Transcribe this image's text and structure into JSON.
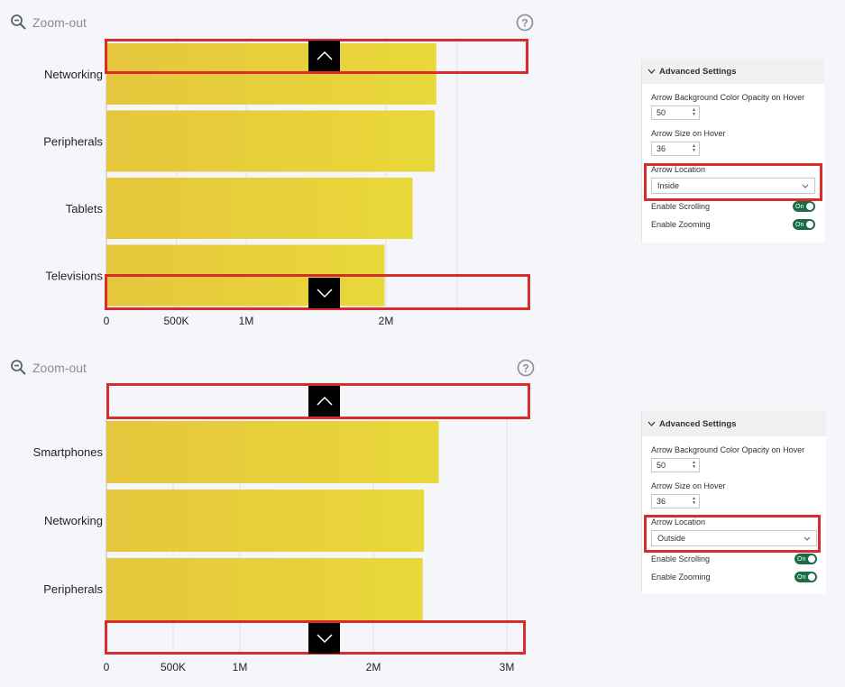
{
  "top": {
    "zoom_label": "Zoom-out",
    "panel": {
      "header": "Advanced Settings",
      "opacity_label": "Arrow Background Color Opacity on Hover",
      "opacity_value": "50",
      "size_label": "Arrow Size on Hover",
      "size_value": "36",
      "location_label": "Arrow Location",
      "location_value": "Inside",
      "scroll_label": "Enable Scrolling",
      "scroll_value": "On",
      "zoom_label": "Enable Zooming",
      "zoom_value": "On"
    }
  },
  "bottom": {
    "zoom_label": "Zoom-out",
    "panel": {
      "header": "Advanced Settings",
      "opacity_label": "Arrow Background Color Opacity on Hover",
      "opacity_value": "50",
      "size_label": "Arrow Size on Hover",
      "size_value": "36",
      "location_label": "Arrow Location",
      "location_value": "Outside",
      "scroll_label": "Enable Scrolling",
      "scroll_value": "On",
      "zoom_label": "Enable Zooming",
      "zoom_value": "On"
    }
  },
  "colors": {
    "bar": "#e6cf3a",
    "highlight": "#d92d2d",
    "toggle": "#1a6e46"
  },
  "chart_data": [
    {
      "type": "bar",
      "orientation": "horizontal",
      "categories": [
        "Networking",
        "Peripherals",
        "Tablets",
        "Televisions"
      ],
      "values": [
        2360000,
        2350000,
        2190000,
        1990000
      ],
      "x_ticks": [
        "0",
        "500K",
        "1M",
        "2M"
      ],
      "x_tick_values": [
        0,
        500000,
        1000000,
        2000000
      ],
      "xlim": [
        0,
        3000000
      ]
    },
    {
      "type": "bar",
      "orientation": "horizontal",
      "categories": [
        "Smartphones",
        "Networking",
        "Peripherals"
      ],
      "values": [
        2490000,
        2380000,
        2370000
      ],
      "x_ticks": [
        "0",
        "500K",
        "1M",
        "2M",
        "3M"
      ],
      "x_tick_values": [
        0,
        500000,
        1000000,
        2000000,
        3000000
      ],
      "xlim": [
        0,
        3000000
      ]
    }
  ]
}
